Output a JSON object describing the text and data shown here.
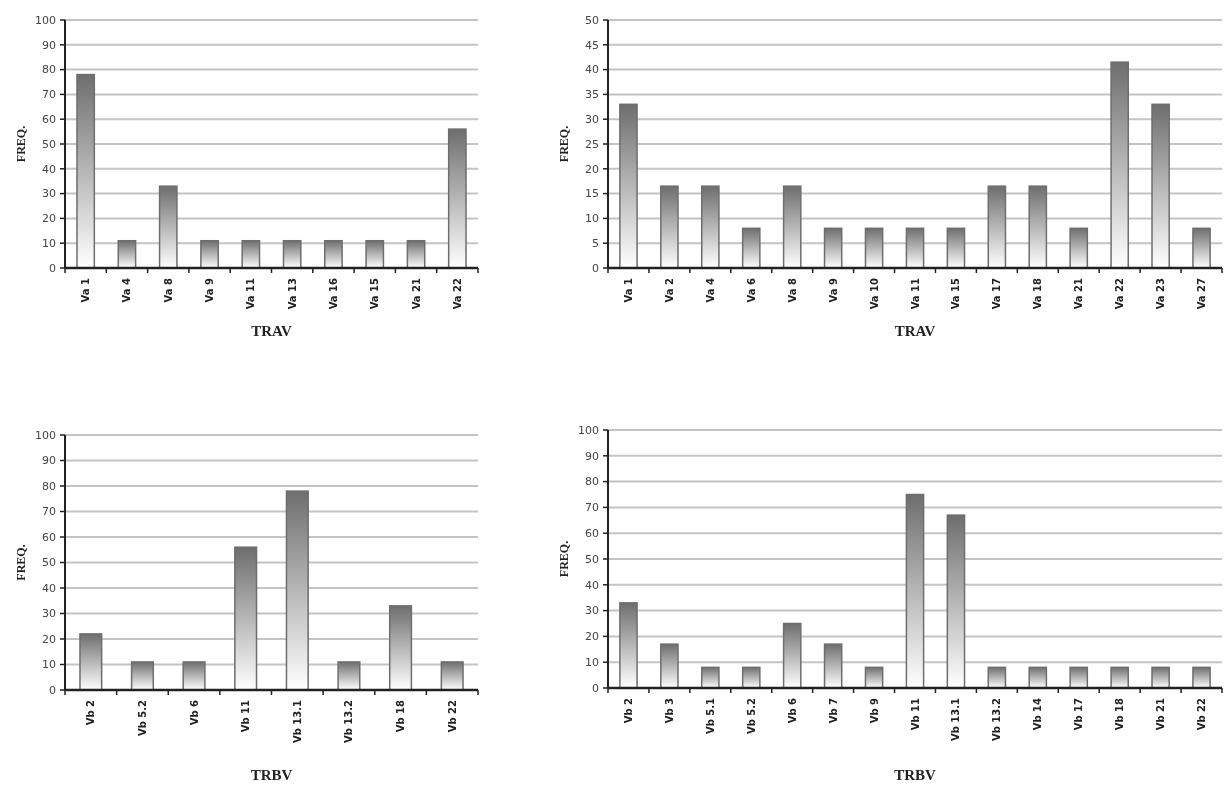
{
  "chart_data": [
    {
      "type": "bar",
      "xlabel": "TRAV",
      "ylabel": "FREQ.",
      "categories": [
        "Va 1",
        "Va 4",
        "Va 8",
        "Va 9",
        "Va 11",
        "Va 13",
        "Va 16",
        "Va 15",
        "Va 21",
        "Va 22"
      ],
      "values": [
        78,
        11,
        33,
        11,
        11,
        11,
        11,
        11,
        11,
        56
      ],
      "color": "#6e6e6e",
      "ylim": [
        0,
        100
      ],
      "yticks": [
        0,
        10,
        20,
        30,
        40,
        50,
        60,
        70,
        80,
        90,
        100
      ],
      "grid": "y"
    },
    {
      "type": "bar",
      "xlabel": "TRAV",
      "ylabel": "FREQ.",
      "categories": [
        "Va 1",
        "Va 2",
        "Va 4",
        "Va 6",
        "Va 8",
        "Va 9",
        "Va 10",
        "Va 11",
        "Va 15",
        "Va 17",
        "Va 18",
        "Va 21",
        "Va 22",
        "Va 23",
        "Va 27"
      ],
      "values": [
        33,
        16.5,
        16.5,
        8,
        16.5,
        8,
        8,
        8,
        8,
        16.5,
        16.5,
        8,
        41.5,
        33,
        8
      ],
      "color": "#6e6e6e",
      "ylim": [
        0,
        50
      ],
      "yticks": [
        0,
        5,
        10,
        15,
        20,
        25,
        30,
        35,
        40,
        45,
        50
      ],
      "grid": "y"
    },
    {
      "type": "bar",
      "xlabel": "TRBV",
      "ylabel": "FREQ.",
      "categories": [
        "Vb 2",
        "Vb 5.2",
        "Vb 6",
        "Vb 11",
        "Vb 13.1",
        "Vb 13.2",
        "Vb 18",
        "Vb 22"
      ],
      "values": [
        22,
        11,
        11,
        56,
        78,
        11,
        33,
        11
      ],
      "color": "#6e6e6e",
      "ylim": [
        0,
        100
      ],
      "yticks": [
        0,
        10,
        20,
        30,
        40,
        50,
        60,
        70,
        80,
        90,
        100
      ],
      "grid": "y"
    },
    {
      "type": "bar",
      "xlabel": "TRBV",
      "ylabel": "FREQ.",
      "categories": [
        "Vb 2",
        "Vb 3",
        "Vb 5.1",
        "Vb 5.2",
        "Vb 6",
        "Vb 7",
        "Vb 9",
        "Vb 11",
        "Vb 13.1",
        "Vb 13.2",
        "Vb 14",
        "Vb 17",
        "Vb 18",
        "Vb 21",
        "Vb 22"
      ],
      "values": [
        33,
        17,
        8,
        8,
        25,
        17,
        8,
        75,
        67,
        8,
        8,
        8,
        8,
        8,
        8
      ],
      "color": "#6e6e6e",
      "ylim": [
        0,
        100
      ],
      "yticks": [
        0,
        10,
        20,
        30,
        40,
        50,
        60,
        70,
        80,
        90,
        100
      ],
      "grid": "y"
    }
  ]
}
